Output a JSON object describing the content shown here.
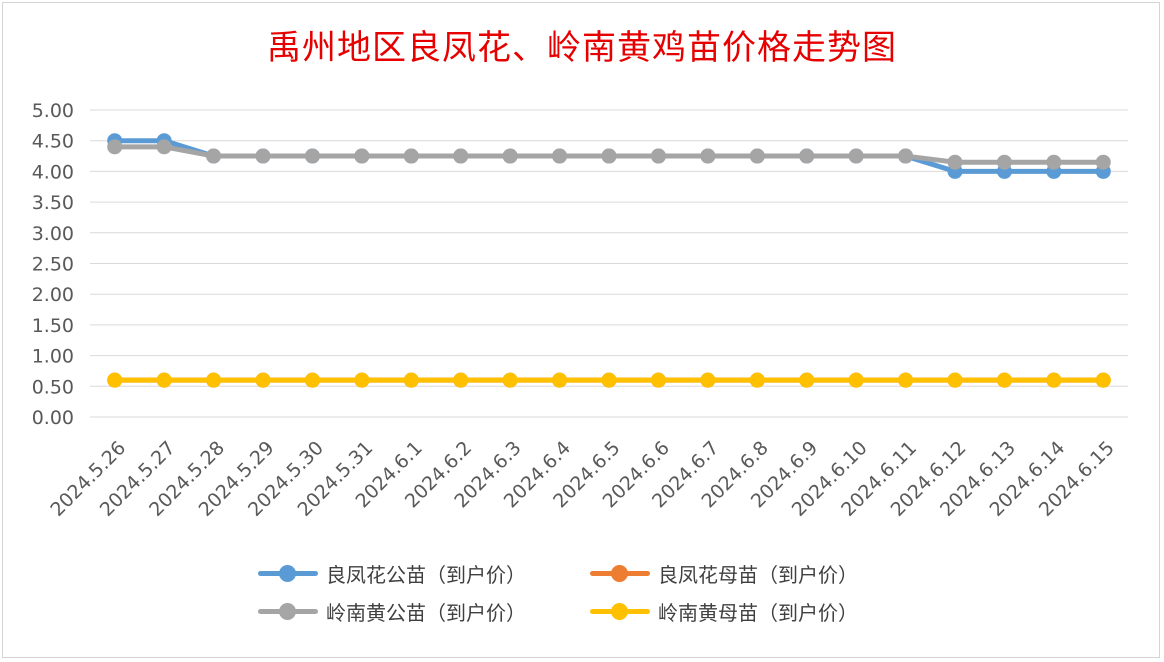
{
  "chart_data": {
    "type": "line",
    "title": "禹州地区良凤花、岭南黄鸡苗价格走势图",
    "xlabel": "",
    "ylabel": "",
    "ylim": [
      0,
      5
    ],
    "ytick_step": 0.5,
    "ytick_labels": [
      "0.00",
      "0.50",
      "1.00",
      "1.50",
      "2.00",
      "2.50",
      "3.00",
      "3.50",
      "4.00",
      "4.50",
      "5.00"
    ],
    "grid": true,
    "legend_position": "bottom",
    "categories": [
      "2024.5.26",
      "2024.5.27",
      "2024.5.28",
      "2024.5.29",
      "2024.5.30",
      "2024.5.31",
      "2024.6.1",
      "2024.6.2",
      "2024.6.3",
      "2024.6.4",
      "2024.6.5",
      "2024.6.6",
      "2024.6.7",
      "2024.6.8",
      "2024.6.9",
      "2024.6.10",
      "2024.6.11",
      "2024.6.12",
      "2024.6.13",
      "2024.6.14",
      "2024.6.15"
    ],
    "series": [
      {
        "name": "良凤花公苗（到户价）",
        "color": "#5b9bd5",
        "values": [
          4.5,
          4.5,
          4.25,
          4.25,
          4.25,
          4.25,
          4.25,
          4.25,
          4.25,
          4.25,
          4.25,
          4.25,
          4.25,
          4.25,
          4.25,
          4.25,
          4.25,
          4.0,
          4.0,
          4.0,
          4.0
        ]
      },
      {
        "name": "良凤花母苗（到户价）",
        "color": "#ed7d31",
        "values": [
          0.6,
          0.6,
          0.6,
          0.6,
          0.6,
          0.6,
          0.6,
          0.6,
          0.6,
          0.6,
          0.6,
          0.6,
          0.6,
          0.6,
          0.6,
          0.6,
          0.6,
          0.6,
          0.6,
          0.6,
          0.6
        ]
      },
      {
        "name": "岭南黄公苗（到户价）",
        "color": "#a5a5a5",
        "values": [
          4.4,
          4.4,
          4.25,
          4.25,
          4.25,
          4.25,
          4.25,
          4.25,
          4.25,
          4.25,
          4.25,
          4.25,
          4.25,
          4.25,
          4.25,
          4.25,
          4.25,
          4.15,
          4.15,
          4.15,
          4.15
        ]
      },
      {
        "name": "岭南黄母苗（到户价）",
        "color": "#ffc000",
        "values": [
          0.6,
          0.6,
          0.6,
          0.6,
          0.6,
          0.6,
          0.6,
          0.6,
          0.6,
          0.6,
          0.6,
          0.6,
          0.6,
          0.6,
          0.6,
          0.6,
          0.6,
          0.6,
          0.6,
          0.6,
          0.6
        ]
      }
    ]
  }
}
